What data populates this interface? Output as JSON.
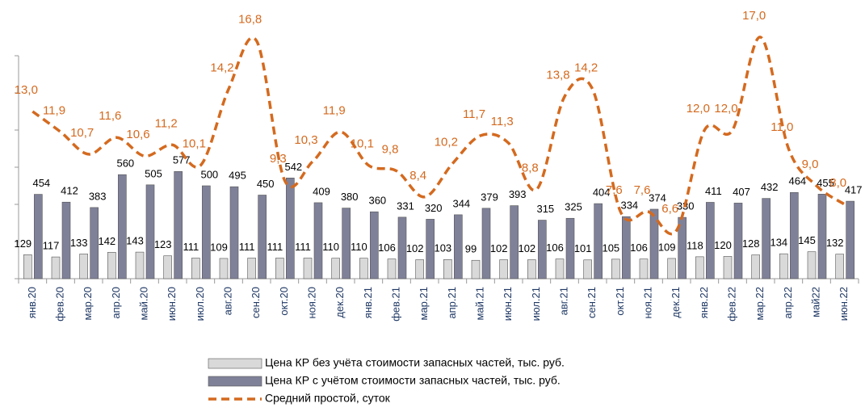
{
  "chart_data": {
    "type": "bar-line",
    "categories": [
      "янв.20",
      "фев.20",
      "мар.20",
      "апр.20",
      "май.20",
      "июн.20",
      "июл.20",
      "авг.20",
      "сен.20",
      "окт.20",
      "ноя.20",
      "дек.20",
      "янв.21",
      "фев.21",
      "мар.21",
      "апр.21",
      "май.21",
      "июн.21",
      "июл.21",
      "авг.21",
      "сен.21",
      "окт.21",
      "ноя.21",
      "дек.21",
      "янв.22",
      "фев.22",
      "мар.22",
      "апр.22",
      "май22",
      "июн.22"
    ],
    "series": [
      {
        "name": "Цена КР без учёта стоимости запасных частей, тыс. руб.",
        "color": "#d9d9d9",
        "values": [
          129,
          117,
          133,
          142,
          143,
          123,
          111,
          109,
          111,
          111,
          111,
          110,
          110,
          106,
          102,
          103,
          99,
          102,
          102,
          106,
          101,
          105,
          106,
          109,
          118,
          120,
          128,
          134,
          145,
          132
        ]
      },
      {
        "name": "Цена КР с учётом стоимости запасных частей, тыс. руб.",
        "color": "#7f8199",
        "values": [
          454,
          412,
          383,
          560,
          505,
          577,
          500,
          495,
          450,
          542,
          409,
          380,
          360,
          331,
          320,
          344,
          379,
          393,
          315,
          325,
          404,
          334,
          374,
          330,
          411,
          407,
          432,
          464,
          455,
          417
        ]
      },
      {
        "name": "Средний простой, суток",
        "color": "#d46a1f",
        "axis": "y2",
        "type": "line",
        "values": [
          13.0,
          11.9,
          10.7,
          11.6,
          10.6,
          11.2,
          10.1,
          14.2,
          16.8,
          9.3,
          10.3,
          11.9,
          10.1,
          9.8,
          8.4,
          10.2,
          11.7,
          11.3,
          8.8,
          13.8,
          14.2,
          7.6,
          7.6,
          6.6,
          12.0,
          12.0,
          17.0,
          11.0,
          9.0,
          8.0
        ],
        "value_labels": [
          "13,0",
          "11,9",
          "10,7",
          "11,6",
          "10,6",
          "11,2",
          "10,1",
          "14,2",
          "16,8",
          "9,3",
          "10,3",
          "11,9",
          "10,1",
          "9,8",
          "8,4",
          "10,2",
          "11,7",
          "11,3",
          "8,8",
          "13,8",
          "14,2",
          "7,6",
          "7,6",
          "6,6",
          "12,0",
          "12,0",
          "17,0",
          "11,0",
          "9,0",
          "8,0"
        ]
      }
    ],
    "ylim": [
      0,
      1200
    ],
    "yticks": [
      0,
      200,
      400,
      600,
      800,
      1000,
      1200
    ],
    "y2lim": [
      4,
      16
    ]
  }
}
